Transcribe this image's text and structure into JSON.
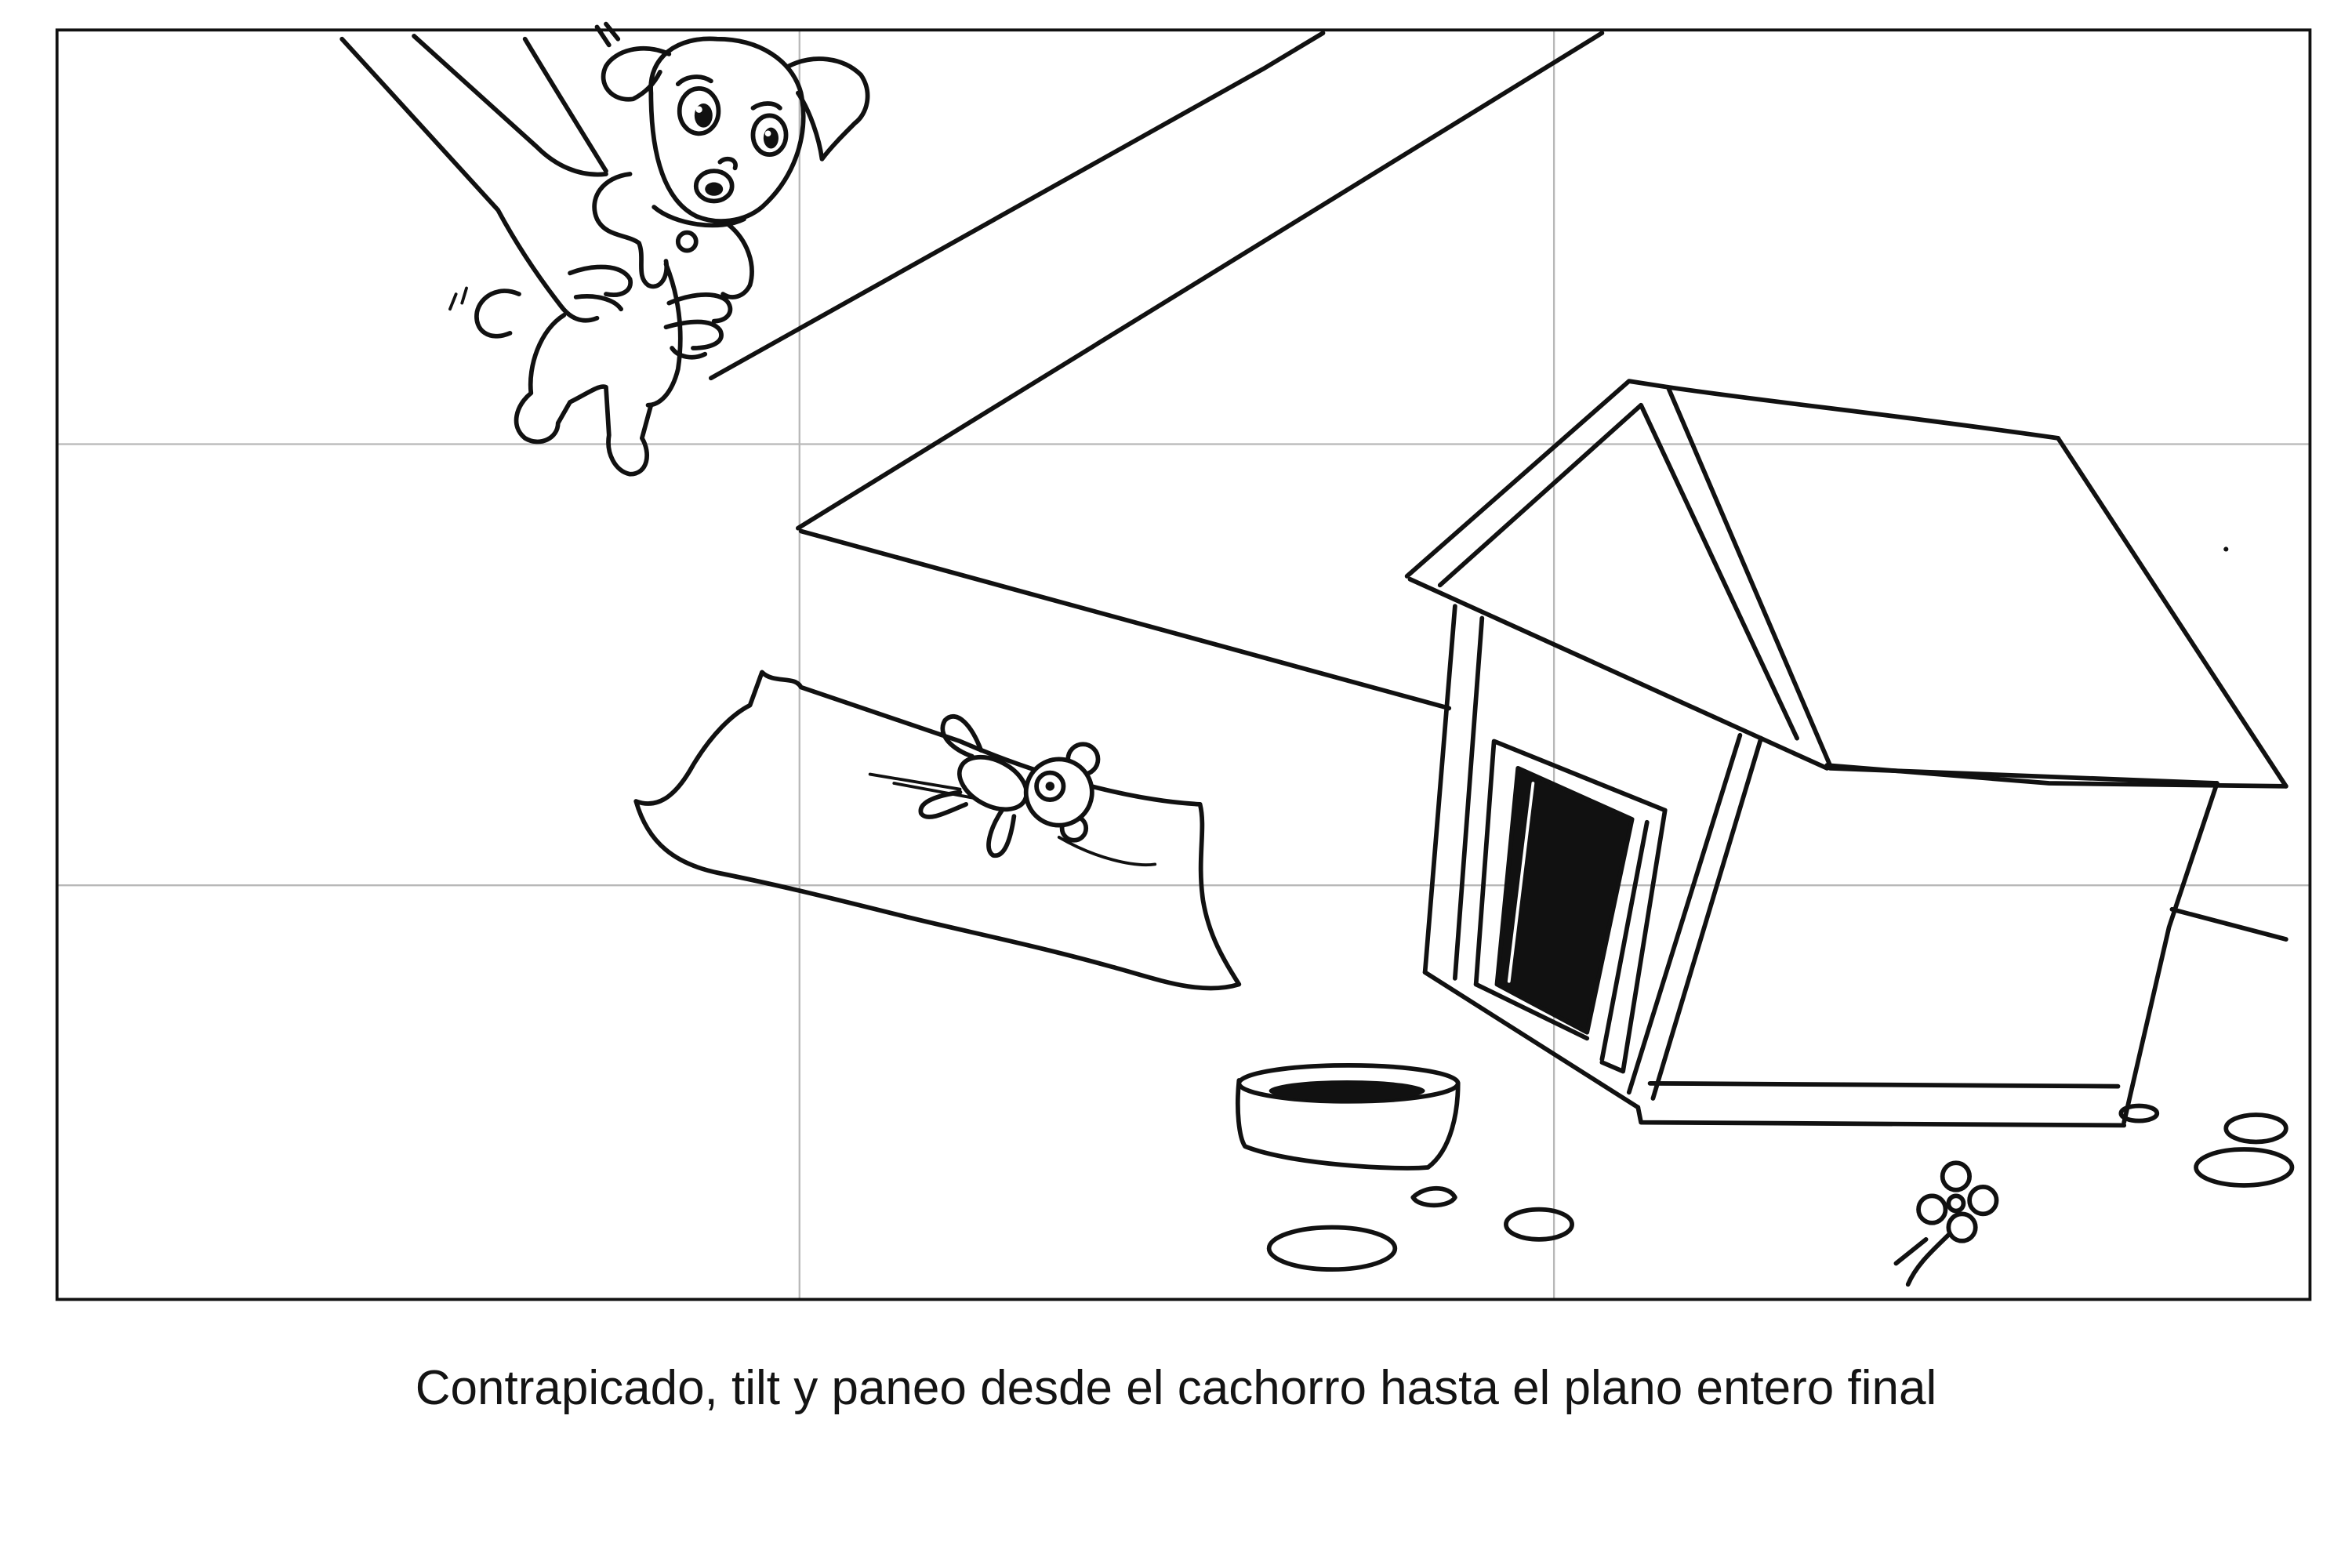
{
  "storyboard": {
    "caption": "Contrapicado, tilt y paneo desde el cachorro hasta el plano entero final"
  },
  "colors": {
    "line": "#111111",
    "guide_grid": "#b8b8b8",
    "background": "#ffffff"
  }
}
